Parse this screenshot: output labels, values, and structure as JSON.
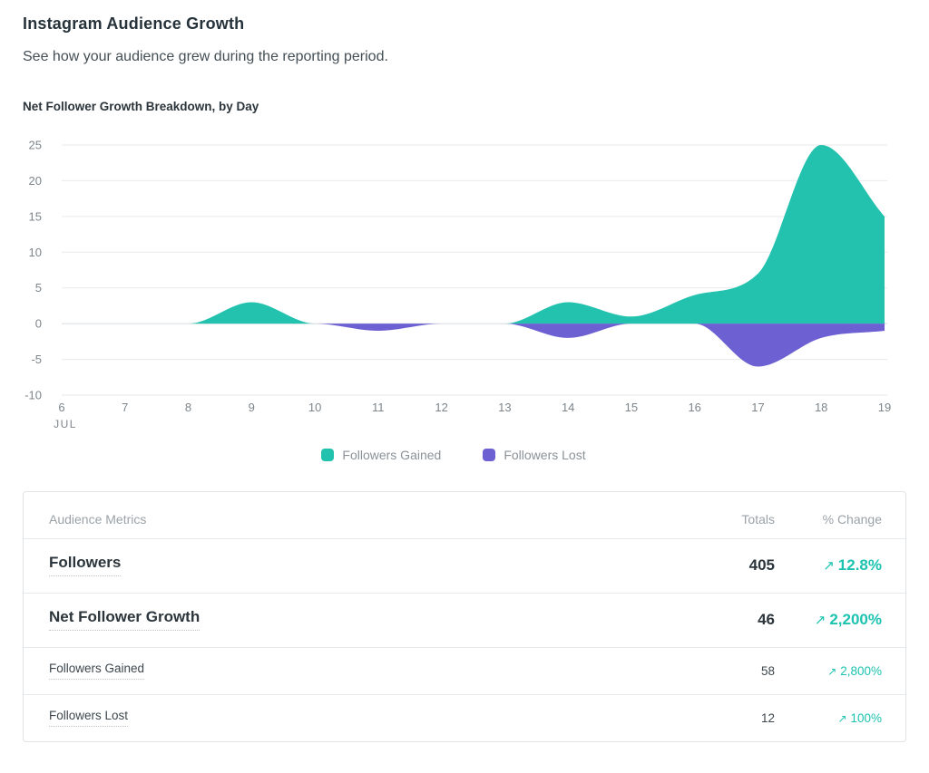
{
  "header": {
    "title": "Instagram Audience Growth",
    "subtitle": "See how your audience grew during the reporting period."
  },
  "chart_section": {
    "title": "Net Follower Growth Breakdown, by Day"
  },
  "chart_data": {
    "type": "area",
    "x_month_label": "JUL",
    "x": [
      6,
      7,
      8,
      9,
      10,
      11,
      12,
      13,
      14,
      15,
      16,
      17,
      18,
      19
    ],
    "series": [
      {
        "name": "Followers Gained",
        "color": "#23c2ae",
        "values": [
          0,
          0,
          0,
          3,
          0,
          0,
          0,
          0,
          3,
          1,
          4,
          7,
          25,
          15
        ]
      },
      {
        "name": "Followers Lost",
        "color": "#6c60d2",
        "values": [
          0,
          0,
          0,
          0,
          0,
          -1,
          0,
          0,
          -2,
          0,
          0,
          -6,
          -2,
          -1
        ]
      }
    ],
    "y_ticks": [
      25,
      20,
      15,
      10,
      5,
      0,
      -5,
      -10
    ],
    "ylim": [
      -10,
      25
    ],
    "grid": true,
    "legend_position": "bottom"
  },
  "table": {
    "columns": [
      "Audience Metrics",
      "Totals",
      "% Change"
    ],
    "change_arrow": "↗",
    "rows": [
      {
        "metric": "Followers",
        "total": "405",
        "change": "12.8%",
        "emphasis": true
      },
      {
        "metric": "Net Follower Growth",
        "total": "46",
        "change": "2,200%",
        "emphasis": true
      },
      {
        "metric": "Followers Gained",
        "total": "58",
        "change": "2,800%",
        "emphasis": false
      },
      {
        "metric": "Followers Lost",
        "total": "12",
        "change": "100%",
        "emphasis": false
      }
    ]
  },
  "colors": {
    "gained": "#23c2ae",
    "lost": "#6c60d2",
    "positive_change_text": "#1cc3b0"
  }
}
